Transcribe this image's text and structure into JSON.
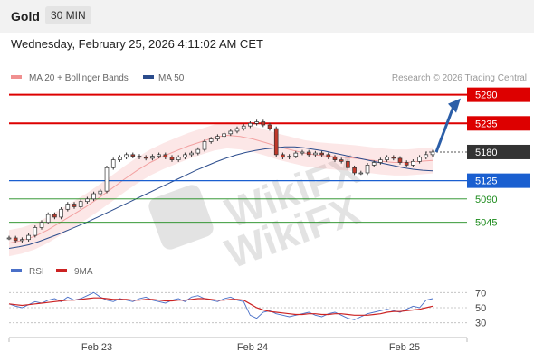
{
  "header": {
    "title": "Gold",
    "timeframe": "30 MIN"
  },
  "datetime": "Wednesday, February 25, 2026 4:11:02 AM CET",
  "legend": {
    "bb_label": "MA 20 + Bollinger Bands",
    "ma50_label": "MA 50",
    "credit": "Research © 2026 Trading Central"
  },
  "colors": {
    "resistance": "#dd0000",
    "current": "#333333",
    "support_blue": "#1a5fd0",
    "support_green": "#1a8a1a",
    "ma50": "#2b4c8c",
    "bb": "#f09090",
    "arrow": "#2b5ea8"
  },
  "chart_data": [
    {
      "type": "line",
      "x": [
        "Feb 23",
        "Feb 24",
        "Feb 25"
      ],
      "y_levels": [
        {
          "value": 5290,
          "label": "5290",
          "kind": "resistance"
        },
        {
          "value": 5235,
          "label": "5235",
          "kind": "resistance"
        },
        {
          "value": 5180,
          "label": "5180",
          "kind": "current"
        },
        {
          "value": 5125,
          "label": "5125",
          "kind": "pivot"
        },
        {
          "value": 5090,
          "label": "5090",
          "kind": "support"
        },
        {
          "value": 5045,
          "label": "5045",
          "kind": "support"
        }
      ],
      "ylim": [
        4975,
        5305
      ],
      "price": [
        5015,
        5010,
        5012,
        5020,
        5035,
        5045,
        5060,
        5055,
        5070,
        5080,
        5075,
        5085,
        5090,
        5100,
        5105,
        5150,
        5165,
        5170,
        5175,
        5172,
        5170,
        5168,
        5172,
        5175,
        5170,
        5165,
        5170,
        5175,
        5178,
        5185,
        5200,
        5205,
        5210,
        5215,
        5220,
        5225,
        5230,
        5235,
        5238,
        5232,
        5225,
        5175,
        5170,
        5172,
        5178,
        5180,
        5175,
        5178,
        5175,
        5170,
        5165,
        5162,
        5150,
        5140,
        5140,
        5155,
        5160,
        5165,
        5170,
        5168,
        5160,
        5155,
        5162,
        5170,
        5175,
        5180
      ],
      "ma50": [
        4995,
        4998,
        5002,
        5008,
        5015,
        5022,
        5030,
        5038,
        5046,
        5055,
        5064,
        5073,
        5082,
        5091,
        5100,
        5109,
        5118,
        5127,
        5136,
        5145,
        5153,
        5161,
        5168,
        5174,
        5179,
        5183,
        5186,
        5188,
        5190,
        5190,
        5188,
        5185,
        5182,
        5178,
        5174,
        5170,
        5166,
        5162,
        5158,
        5154,
        5150,
        5147,
        5145,
        5144
      ],
      "bb_mid": [
        5005,
        5010,
        5018,
        5030,
        5045,
        5060,
        5075,
        5092,
        5110,
        5128,
        5145,
        5160,
        5172,
        5182,
        5192,
        5200,
        5208,
        5212,
        5210,
        5205,
        5198,
        5190,
        5184,
        5178,
        5174,
        5172,
        5170,
        5168,
        5165,
        5162,
        5160,
        5160,
        5162,
        5164
      ],
      "bb_width": 25,
      "series": [
        {
          "name": "MA 20 + Bollinger Bands"
        },
        {
          "name": "MA 50"
        }
      ]
    },
    {
      "type": "line",
      "series": [
        {
          "name": "RSI",
          "values": [
            55,
            52,
            50,
            54,
            58,
            56,
            60,
            62,
            58,
            64,
            60,
            62,
            66,
            70,
            64,
            60,
            58,
            62,
            60,
            58,
            62,
            64,
            60,
            58,
            56,
            60,
            62,
            58,
            64,
            66,
            62,
            60,
            58,
            62,
            64,
            60,
            58,
            40,
            36,
            44,
            46,
            42,
            40,
            38,
            40,
            42,
            44,
            40,
            38,
            42,
            44,
            40,
            36,
            34,
            38,
            42,
            44,
            46,
            48,
            46,
            44,
            48,
            52,
            50,
            60,
            62
          ]
        },
        {
          "name": "9MA",
          "values": [
            55,
            54,
            53,
            54,
            55,
            56,
            57,
            58,
            59,
            60,
            60,
            61,
            62,
            63,
            63,
            62,
            61,
            61,
            61,
            60,
            60,
            61,
            61,
            60,
            59,
            59,
            60,
            60,
            61,
            62,
            62,
            61,
            60,
            60,
            61,
            61,
            60,
            55,
            50,
            47,
            45,
            44,
            43,
            42,
            41,
            41,
            42,
            42,
            41,
            41,
            42,
            42,
            41,
            40,
            40,
            40,
            41,
            42,
            44,
            45,
            45,
            46,
            47,
            48,
            50,
            52
          ]
        }
      ],
      "y_ticks": [
        "70",
        "50",
        "30"
      ],
      "ylim": [
        20,
        80
      ]
    }
  ],
  "xaxis_labels": [
    "Feb 23",
    "Feb 24",
    "Feb 25"
  ]
}
